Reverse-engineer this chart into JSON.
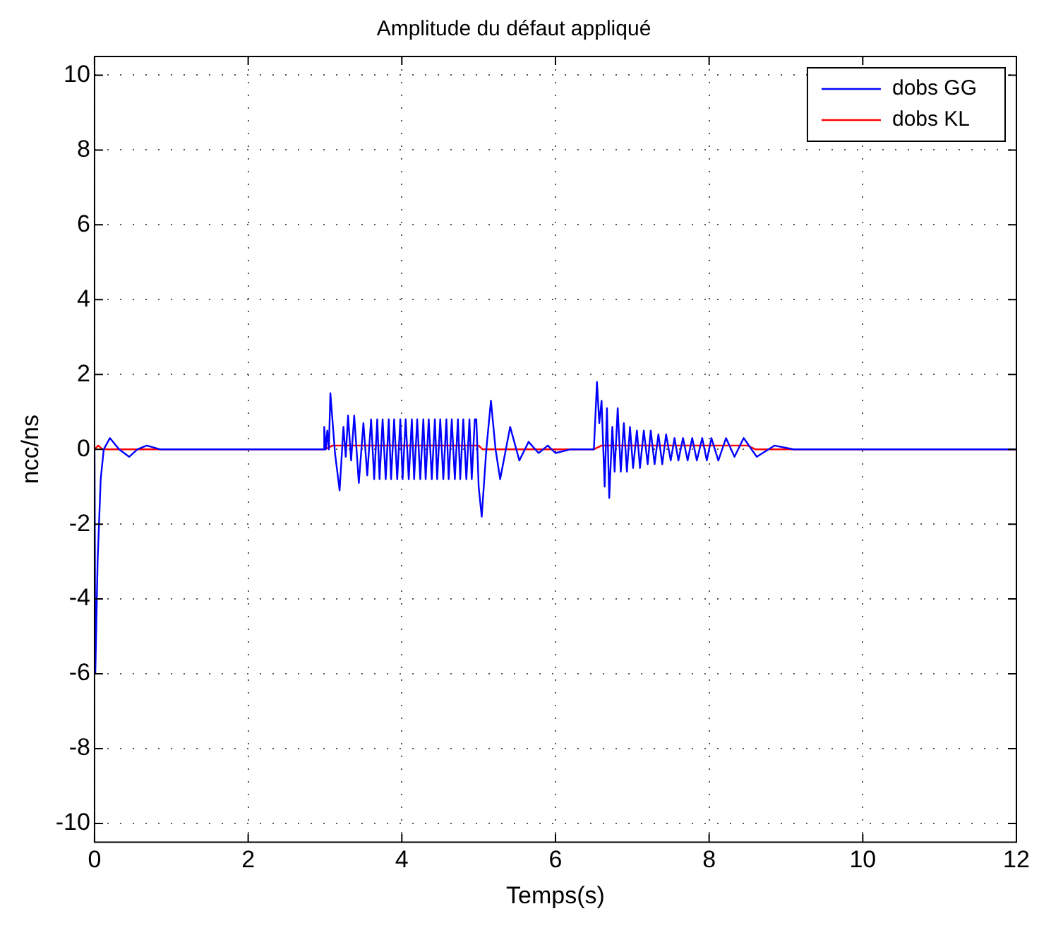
{
  "chart_data": {
    "type": "line",
    "title": "Amplitude du défaut appliqué",
    "xlabel": "Temps(s)",
    "ylabel": "ncc/ns",
    "xlim": [
      0,
      12
    ],
    "xticks": [
      0,
      2,
      4,
      6,
      8,
      10,
      12
    ],
    "ylim": [
      -10.5,
      10.5
    ],
    "yticks": [
      -10,
      -8,
      -6,
      -4,
      -2,
      0,
      2,
      4,
      6,
      8,
      10
    ],
    "grid": true,
    "legend": "top right",
    "marker": "none",
    "line_style": "solid",
    "series": [
      {
        "name": "dobs GG",
        "color": "#0000ff",
        "x": [
          0,
          0.01,
          0.04,
          0.08,
          0.12,
          0.2,
          0.32,
          0.45,
          0.56,
          0.68,
          0.85,
          2.98,
          2.99,
          3.01,
          3.03,
          3.05,
          3.07,
          3.13,
          3.19,
          3.24,
          3.27,
          3.3,
          3.34,
          3.38,
          3.44,
          3.5,
          3.55,
          3.6,
          3.64,
          3.68,
          3.71,
          3.75,
          3.79,
          3.83,
          3.86,
          3.9,
          3.94,
          3.98,
          4.01,
          4.05,
          4.09,
          4.13,
          4.16,
          4.2,
          4.24,
          4.28,
          4.31,
          4.35,
          4.39,
          4.43,
          4.46,
          4.5,
          4.54,
          4.58,
          4.61,
          4.65,
          4.69,
          4.73,
          4.76,
          4.8,
          4.84,
          4.88,
          4.91,
          4.95,
          4.97,
          5.0,
          5.04,
          5.1,
          5.16,
          5.22,
          5.28,
          5.41,
          5.53,
          5.65,
          5.78,
          5.9,
          6.0,
          6.2,
          6.45,
          6.5,
          6.54,
          6.57,
          6.6,
          6.64,
          6.67,
          6.7,
          6.74,
          6.77,
          6.81,
          6.85,
          6.89,
          6.93,
          6.97,
          7.01,
          7.06,
          7.1,
          7.15,
          7.2,
          7.24,
          7.29,
          7.34,
          7.39,
          7.44,
          7.5,
          7.55,
          7.6,
          7.66,
          7.72,
          7.78,
          7.84,
          7.91,
          7.97,
          8.03,
          8.12,
          8.22,
          8.33,
          8.45,
          8.62,
          8.85,
          9.1,
          12
        ],
        "values": [
          0,
          -6.0,
          -3.0,
          -0.8,
          0,
          0.3,
          0,
          -0.2,
          0,
          0.1,
          0,
          0,
          0.6,
          0,
          0.5,
          0,
          1.5,
          -0.1,
          -1.1,
          0.6,
          -0.2,
          0.9,
          -0.3,
          0.9,
          -0.9,
          0.7,
          -0.7,
          0.8,
          -0.8,
          0.8,
          -0.8,
          0.8,
          -0.8,
          0.8,
          -0.8,
          0.8,
          -0.8,
          0.8,
          -0.8,
          0.8,
          -0.8,
          0.8,
          -0.8,
          0.8,
          -0.8,
          0.8,
          -0.8,
          0.8,
          -0.8,
          0.8,
          -0.8,
          0.8,
          -0.8,
          0.8,
          -0.8,
          0.8,
          -0.8,
          0.8,
          -0.8,
          0.8,
          -0.8,
          0.8,
          -0.8,
          0.8,
          0.8,
          -1.0,
          -1.8,
          0,
          1.3,
          0,
          -0.8,
          0.6,
          -0.3,
          0.2,
          -0.1,
          0.1,
          -0.1,
          0,
          0,
          0,
          1.8,
          0.7,
          1.3,
          -1.0,
          1.1,
          -1.3,
          0.6,
          -0.6,
          1.1,
          -0.6,
          0.7,
          -0.6,
          0.6,
          -0.5,
          0.5,
          -0.5,
          0.5,
          -0.4,
          0.5,
          -0.4,
          0.4,
          -0.4,
          0.4,
          -0.3,
          0.3,
          -0.3,
          0.3,
          -0.3,
          0.3,
          -0.3,
          0.3,
          -0.3,
          0.3,
          -0.3,
          0.3,
          -0.2,
          0.3,
          -0.2,
          0.1,
          0,
          0
        ]
      },
      {
        "name": "dobs KL",
        "color": "#ff0000",
        "x": [
          0,
          0.05,
          0.1,
          3.0,
          3.1,
          5.0,
          5.05,
          6.5,
          6.6,
          8.5,
          8.6,
          12
        ],
        "values": [
          0,
          0.1,
          0,
          0,
          0.1,
          0.1,
          0,
          0,
          0.1,
          0.1,
          0,
          0
        ]
      }
    ]
  }
}
